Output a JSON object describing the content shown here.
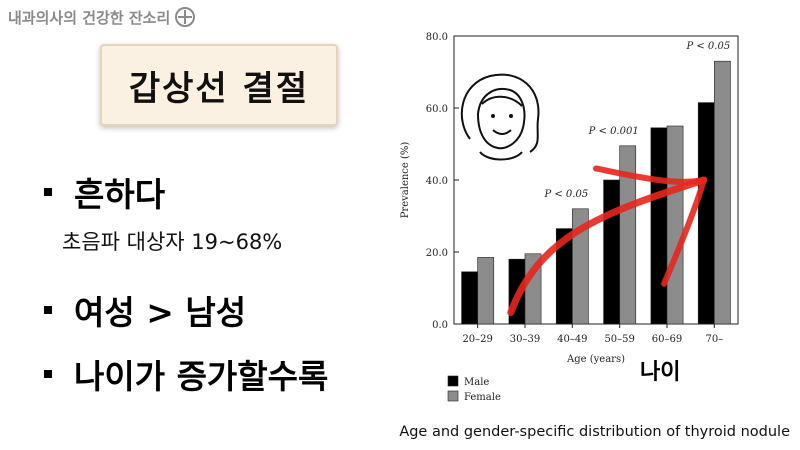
{
  "header": {
    "channel_name": "내과의사의 건강한 잔소리",
    "logo_icon": "circle-plus-icon"
  },
  "slide": {
    "title": "갑상선 결절",
    "bullets": [
      {
        "text": "흔하다",
        "sub": "초음파 대상자 19~68%"
      },
      {
        "text": "여성 > 남성"
      },
      {
        "text": "나이가 증가할수록"
      }
    ],
    "age_note": "나이",
    "caption": "Age and gender-specific distribution of thyroid nodule"
  },
  "chart_data": {
    "type": "bar",
    "categories": [
      "20–29",
      "30–39",
      "40–49",
      "50–59",
      "60–69",
      "70–"
    ],
    "series": [
      {
        "name": "Male",
        "color": "#000000",
        "values": [
          14.5,
          18.0,
          26.5,
          40.0,
          54.5,
          61.5
        ]
      },
      {
        "name": "Female",
        "color": "#8c8c8c",
        "values": [
          18.5,
          19.5,
          32.0,
          49.5,
          55.0,
          73.0
        ]
      }
    ],
    "xlabel": "Age (years)",
    "ylabel": "Prevalence (%)",
    "ylim": [
      0,
      80
    ],
    "yticks": [
      "0.0",
      "20.0",
      "40.0",
      "60.0",
      "80.0"
    ],
    "annotations": [
      {
        "category": "40–49",
        "text": "P < 0.05"
      },
      {
        "category": "50–59",
        "text": "P < 0.001"
      },
      {
        "category": "70–",
        "text": "P < 0.05"
      }
    ],
    "legend_position": "bottom-left",
    "overlay": {
      "type": "arrow",
      "color": "#e8261c",
      "direction": "increasing-with-age"
    }
  }
}
